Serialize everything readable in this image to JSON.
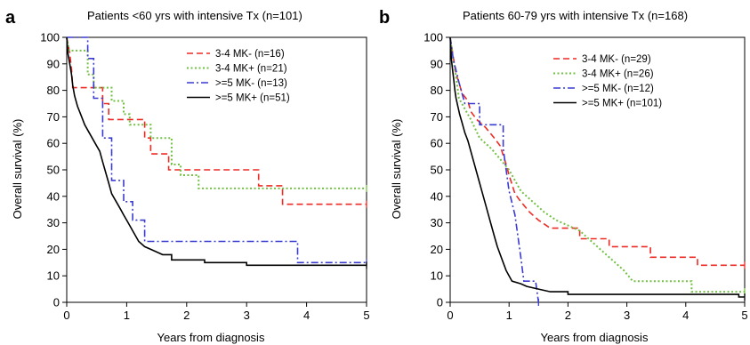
{
  "panels": [
    {
      "letter": "a",
      "title": "Patients <60 yrs with intensive Tx (n=101)",
      "xlabel": "Years from diagnosis",
      "ylabel": "Overall survival (%)"
    },
    {
      "letter": "b",
      "title": "Patients 60-79 yrs with intensive Tx (n=168)",
      "xlabel": "Years from diagnosis",
      "ylabel": "Overall survival (%)"
    }
  ],
  "colors": {
    "mk34_neg": "#ee2a24",
    "mk34_pos": "#72c043",
    "mk5_neg": "#3a3ccf",
    "mk5_pos": "#000000"
  },
  "chart_data": [
    {
      "type": "line",
      "title": "Patients <60 yrs with intensive Tx (n=101)",
      "xlabel": "Years from diagnosis",
      "ylabel": "Overall survival (%)",
      "xlim": [
        0,
        5
      ],
      "ylim": [
        0,
        100
      ],
      "xticks": [
        "0",
        "1",
        "2",
        "3",
        "4",
        "5"
      ],
      "yticks": [
        "0",
        "10",
        "20",
        "30",
        "40",
        "50",
        "60",
        "70",
        "80",
        "90",
        "100"
      ],
      "grid": false,
      "legend_position": "top-right",
      "series": [
        {
          "name": "3-4 MK- (n=16)",
          "style": "dashed",
          "color_key": "mk34_neg",
          "points": [
            [
              0,
              100
            ],
            [
              0.05,
              94
            ],
            [
              0.08,
              88
            ],
            [
              0.1,
              81
            ],
            [
              0.6,
              81
            ],
            [
              0.6,
              75
            ],
            [
              0.7,
              75
            ],
            [
              0.7,
              69
            ],
            [
              1.3,
              69
            ],
            [
              1.3,
              62
            ],
            [
              1.4,
              62
            ],
            [
              1.4,
              56
            ],
            [
              1.7,
              56
            ],
            [
              1.7,
              50
            ],
            [
              3.2,
              50
            ],
            [
              3.2,
              44
            ],
            [
              3.6,
              44
            ],
            [
              3.6,
              37
            ],
            [
              5,
              37
            ]
          ]
        },
        {
          "name": "3-4 MK+ (n=21)",
          "style": "dotted",
          "color_key": "mk34_pos",
          "points": [
            [
              0,
              100
            ],
            [
              0.04,
              95
            ],
            [
              0.35,
              95
            ],
            [
              0.35,
              86
            ],
            [
              0.45,
              86
            ],
            [
              0.45,
              81
            ],
            [
              0.75,
              81
            ],
            [
              0.75,
              76
            ],
            [
              0.95,
              76
            ],
            [
              0.95,
              71
            ],
            [
              1.05,
              71
            ],
            [
              1.05,
              67
            ],
            [
              1.4,
              67
            ],
            [
              1.4,
              62
            ],
            [
              1.75,
              62
            ],
            [
              1.75,
              52
            ],
            [
              1.9,
              52
            ],
            [
              1.9,
              48
            ],
            [
              2.2,
              48
            ],
            [
              2.2,
              43
            ],
            [
              5,
              43
            ]
          ]
        },
        {
          "name": ">=5 MK- (n=13)",
          "style": "dashdot",
          "color_key": "mk5_neg",
          "points": [
            [
              0,
              100
            ],
            [
              0.35,
              100
            ],
            [
              0.35,
              92
            ],
            [
              0.45,
              92
            ],
            [
              0.45,
              77
            ],
            [
              0.6,
              77
            ],
            [
              0.6,
              62
            ],
            [
              0.75,
              62
            ],
            [
              0.75,
              46
            ],
            [
              0.95,
              46
            ],
            [
              0.95,
              38
            ],
            [
              1.1,
              38
            ],
            [
              1.1,
              31
            ],
            [
              1.3,
              31
            ],
            [
              1.3,
              23
            ],
            [
              3.85,
              23
            ],
            [
              3.85,
              15
            ],
            [
              5,
              15
            ]
          ]
        },
        {
          "name": ">=5 MK+ (n=51)",
          "style": "solid",
          "color_key": "mk5_pos",
          "points": [
            [
              0,
              100
            ],
            [
              0.02,
              94
            ],
            [
              0.05,
              90
            ],
            [
              0.08,
              86
            ],
            [
              0.1,
              82
            ],
            [
              0.13,
              78
            ],
            [
              0.18,
              74
            ],
            [
              0.25,
              70
            ],
            [
              0.3,
              67
            ],
            [
              0.35,
              65
            ],
            [
              0.4,
              63
            ],
            [
              0.45,
              61
            ],
            [
              0.5,
              59
            ],
            [
              0.55,
              57
            ],
            [
              0.6,
              53
            ],
            [
              0.65,
              49
            ],
            [
              0.7,
              45
            ],
            [
              0.75,
              41
            ],
            [
              0.8,
              39
            ],
            [
              0.85,
              37
            ],
            [
              0.9,
              35
            ],
            [
              0.95,
              33
            ],
            [
              1.0,
              31
            ],
            [
              1.05,
              29
            ],
            [
              1.1,
              27
            ],
            [
              1.15,
              25
            ],
            [
              1.2,
              23
            ],
            [
              1.3,
              21
            ],
            [
              1.4,
              20
            ],
            [
              1.5,
              19
            ],
            [
              1.6,
              18
            ],
            [
              1.75,
              18
            ],
            [
              1.75,
              16
            ],
            [
              2.3,
              16
            ],
            [
              2.3,
              15
            ],
            [
              3.0,
              15
            ],
            [
              3.0,
              14
            ],
            [
              5,
              14
            ]
          ]
        }
      ]
    },
    {
      "type": "line",
      "title": "Patients 60-79 yrs with intensive Tx (n=168)",
      "xlabel": "Years from diagnosis",
      "ylabel": "Overall survival (%)",
      "xlim": [
        0,
        5
      ],
      "ylim": [
        0,
        100
      ],
      "xticks": [
        "0",
        "1",
        "2",
        "3",
        "4",
        "5"
      ],
      "yticks": [
        "0",
        "10",
        "20",
        "30",
        "40",
        "50",
        "60",
        "70",
        "80",
        "90",
        "100"
      ],
      "grid": false,
      "legend_position": "top-right",
      "series": [
        {
          "name": "3-4 MK- (n=29)",
          "style": "dashed",
          "color_key": "mk34_neg",
          "points": [
            [
              0,
              100
            ],
            [
              0.05,
              93
            ],
            [
              0.1,
              86
            ],
            [
              0.15,
              83
            ],
            [
              0.2,
              79
            ],
            [
              0.3,
              76
            ],
            [
              0.35,
              72
            ],
            [
              0.45,
              69
            ],
            [
              0.6,
              66
            ],
            [
              0.75,
              62
            ],
            [
              0.85,
              59
            ],
            [
              0.95,
              52
            ],
            [
              1.0,
              48
            ],
            [
              1.1,
              41
            ],
            [
              1.2,
              38
            ],
            [
              1.35,
              34
            ],
            [
              1.5,
              31
            ],
            [
              1.7,
              28
            ],
            [
              2.2,
              28
            ],
            [
              2.2,
              24
            ],
            [
              2.7,
              24
            ],
            [
              2.7,
              21
            ],
            [
              3.4,
              21
            ],
            [
              3.4,
              17
            ],
            [
              4.2,
              17
            ],
            [
              4.2,
              14
            ],
            [
              5,
              14
            ]
          ]
        },
        {
          "name": "3-4 MK+ (n=26)",
          "style": "dotted",
          "color_key": "mk34_pos",
          "points": [
            [
              0,
              100
            ],
            [
              0.05,
              92
            ],
            [
              0.1,
              85
            ],
            [
              0.15,
              77
            ],
            [
              0.25,
              73
            ],
            [
              0.35,
              69
            ],
            [
              0.5,
              62
            ],
            [
              0.7,
              58
            ],
            [
              0.85,
              54
            ],
            [
              1.0,
              50
            ],
            [
              1.1,
              46
            ],
            [
              1.2,
              42
            ],
            [
              1.4,
              38
            ],
            [
              1.6,
              34
            ],
            [
              1.8,
              31
            ],
            [
              2.2,
              27
            ],
            [
              2.4,
              23
            ],
            [
              2.6,
              19
            ],
            [
              2.8,
              15
            ],
            [
              2.95,
              12
            ],
            [
              3.1,
              8
            ],
            [
              4.1,
              8
            ],
            [
              4.1,
              4
            ],
            [
              5,
              4
            ]
          ]
        },
        {
          "name": ">=5 MK- (n=12)",
          "style": "dashdot",
          "color_key": "mk5_neg",
          "points": [
            [
              0,
              100
            ],
            [
              0.05,
              92
            ],
            [
              0.15,
              83
            ],
            [
              0.25,
              75
            ],
            [
              0.5,
              75
            ],
            [
              0.5,
              67
            ],
            [
              0.9,
              67
            ],
            [
              0.9,
              58
            ],
            [
              0.95,
              50
            ],
            [
              1.0,
              42
            ],
            [
              1.1,
              33
            ],
            [
              1.15,
              25
            ],
            [
              1.2,
              17
            ],
            [
              1.25,
              8
            ],
            [
              1.45,
              8
            ],
            [
              1.5,
              0
            ]
          ]
        },
        {
          "name": ">=5 MK+ (n=101)",
          "style": "solid",
          "color_key": "mk5_pos",
          "points": [
            [
              0,
              100
            ],
            [
              0.02,
              92
            ],
            [
              0.04,
              88
            ],
            [
              0.06,
              84
            ],
            [
              0.08,
              80
            ],
            [
              0.1,
              77
            ],
            [
              0.13,
              74
            ],
            [
              0.16,
              71
            ],
            [
              0.2,
              68
            ],
            [
              0.25,
              64
            ],
            [
              0.3,
              61
            ],
            [
              0.35,
              57
            ],
            [
              0.4,
              53
            ],
            [
              0.45,
              49
            ],
            [
              0.5,
              45
            ],
            [
              0.55,
              41
            ],
            [
              0.6,
              37
            ],
            [
              0.65,
              33
            ],
            [
              0.7,
              29
            ],
            [
              0.75,
              25
            ],
            [
              0.8,
              21
            ],
            [
              0.85,
              18
            ],
            [
              0.9,
              15
            ],
            [
              0.95,
              12
            ],
            [
              1.0,
              10
            ],
            [
              1.05,
              8
            ],
            [
              1.2,
              7
            ],
            [
              1.3,
              6
            ],
            [
              1.5,
              5
            ],
            [
              1.7,
              4
            ],
            [
              2.0,
              4
            ],
            [
              2.0,
              3
            ],
            [
              4.9,
              3
            ],
            [
              4.9,
              2
            ],
            [
              5,
              2
            ]
          ]
        }
      ]
    }
  ]
}
